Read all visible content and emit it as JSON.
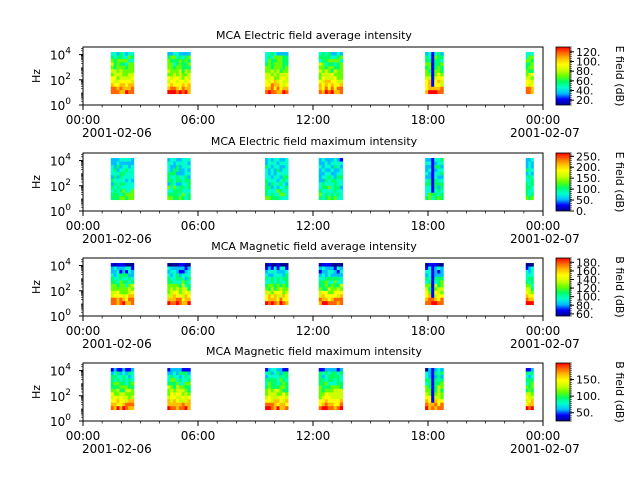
{
  "chart_data": [
    {
      "type": "heatmap",
      "title": "MCA  Electric field average intensity",
      "ylabel": "Hz",
      "colorbar_label": "E field (dB)",
      "colorbar_ticks": [
        "120.",
        "100.",
        "80.",
        "60.",
        "40.",
        "20."
      ],
      "colorbar_range": [
        10,
        130
      ],
      "y_ticks": [
        "10",
        "10",
        "10"
      ],
      "y_tick_exponents": [
        "0",
        "2",
        "4"
      ],
      "x_ticks": [
        "00:00",
        "06:00",
        "12:00",
        "18:00",
        "00:00"
      ],
      "x_date_labels": [
        "2001-02-06",
        "2001-02-07"
      ],
      "x_range_hours": [
        0,
        24
      ],
      "y_range_log10": [
        0,
        4.6
      ]
    },
    {
      "type": "heatmap",
      "title": "MCA  Electric field maximum intensity",
      "ylabel": "Hz",
      "colorbar_label": "E field (dB)",
      "colorbar_ticks": [
        "250.",
        "200.",
        "150.",
        "100.",
        "50.",
        "0."
      ],
      "colorbar_range": [
        0,
        265
      ],
      "y_ticks": [
        "10",
        "10",
        "10"
      ],
      "y_tick_exponents": [
        "0",
        "2",
        "4"
      ],
      "x_ticks": [
        "00:00",
        "06:00",
        "12:00",
        "18:00",
        "00:00"
      ],
      "x_date_labels": [
        "2001-02-06",
        "2001-02-07"
      ],
      "x_range_hours": [
        0,
        24
      ],
      "y_range_log10": [
        0,
        4.6
      ]
    },
    {
      "type": "heatmap",
      "title": "MCA  Magnetic field average intensity",
      "ylabel": "Hz",
      "colorbar_label": "B field (dB)",
      "colorbar_ticks": [
        "180.",
        "160.",
        "140.",
        "120.",
        "100.",
        "80.",
        "60."
      ],
      "colorbar_range": [
        55,
        190
      ],
      "y_ticks": [
        "10",
        "10",
        "10"
      ],
      "y_tick_exponents": [
        "0",
        "2",
        "4"
      ],
      "x_ticks": [
        "00:00",
        "06:00",
        "12:00",
        "18:00",
        "00:00"
      ],
      "x_date_labels": [
        "2001-02-06",
        "2001-02-07"
      ],
      "x_range_hours": [
        0,
        24
      ],
      "y_range_log10": [
        0,
        4.6
      ]
    },
    {
      "type": "heatmap",
      "title": "MCA  Magnetic field maximum intensity",
      "ylabel": "Hz",
      "colorbar_label": "B field (dB)",
      "colorbar_ticks": [
        "150.",
        "100.",
        "50."
      ],
      "colorbar_range": [
        25,
        200
      ],
      "y_ticks": [
        "10",
        "10",
        "10"
      ],
      "y_tick_exponents": [
        "0",
        "2",
        "4"
      ],
      "x_ticks": [
        "00:00",
        "06:00",
        "12:00",
        "18:00",
        "00:00"
      ],
      "x_date_labels": [
        "2001-02-06",
        "2001-02-07"
      ],
      "x_range_hours": [
        0,
        24
      ],
      "y_range_log10": [
        0,
        4.6
      ]
    }
  ],
  "data_intervals_hours": [
    [
      1.45,
      2.65
    ],
    [
      4.4,
      5.6
    ],
    [
      9.5,
      10.7
    ],
    [
      12.3,
      13.55
    ],
    [
      17.85,
      18.8
    ],
    [
      23.1,
      23.5
    ]
  ],
  "colorscale": [
    "#00008f",
    "#0000ff",
    "#00bfff",
    "#00ffcc",
    "#00ff66",
    "#66ff00",
    "#ccff00",
    "#ffff00",
    "#ffbf00",
    "#ff6600",
    "#ff0000"
  ]
}
